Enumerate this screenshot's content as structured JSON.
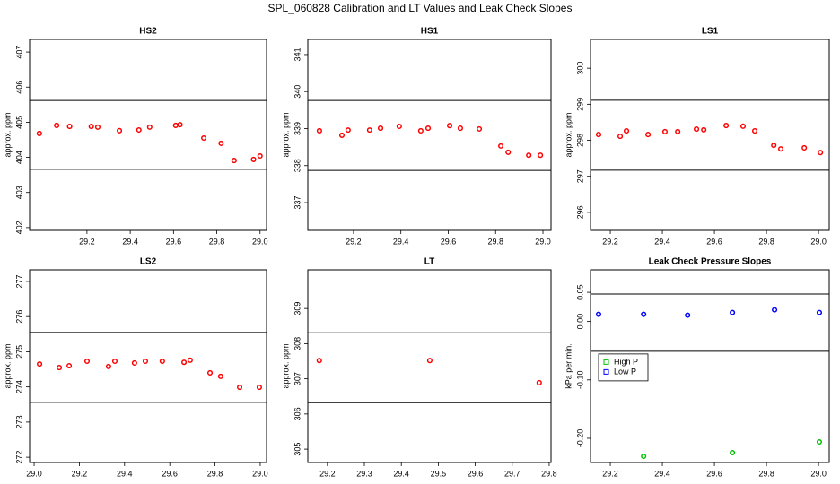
{
  "title": "SPL_060828  Calibration and LT Values and Leak Check Slopes",
  "chart_data": [
    {
      "type": "scatter",
      "title": "HS2",
      "y_label": "approx. ppm",
      "color": "#ff0000",
      "x": [
        27.98,
        28.06,
        28.12,
        28.22,
        28.25,
        28.35,
        28.44,
        28.49,
        28.61,
        28.63,
        28.74,
        28.82,
        28.88,
        28.97,
        29.0
      ],
      "values": [
        404.68,
        404.91,
        404.88,
        404.88,
        404.86,
        404.76,
        404.78,
        404.86,
        404.91,
        404.93,
        404.55,
        404.4,
        403.91,
        403.94,
        404.04
      ],
      "xlim": [
        27.935,
        29.03
      ],
      "ylim": [
        401.92,
        407.36
      ],
      "xticks": [
        {
          "value": 28.2,
          "label": "29.2"
        },
        {
          "value": 28.4,
          "label": "29.4"
        },
        {
          "value": 28.6,
          "label": "29.6"
        },
        {
          "value": 28.8,
          "label": "29.8"
        },
        {
          "value": 29.0,
          "label": "29.0"
        }
      ],
      "yticks": [
        402,
        403,
        404,
        405,
        406,
        407
      ],
      "hlines": [
        405.62,
        403.66
      ]
    },
    {
      "type": "scatter",
      "title": "HS1",
      "y_label": "approx. ppm",
      "color": "#ff0000",
      "x": [
        28.056,
        28.151,
        28.177,
        28.268,
        28.314,
        28.393,
        28.484,
        28.515,
        28.606,
        28.651,
        28.731,
        28.822,
        28.853,
        28.94,
        28.989
      ],
      "values": [
        338.94,
        338.82,
        338.96,
        338.96,
        339.01,
        339.06,
        338.94,
        339.01,
        339.08,
        339.01,
        338.99,
        338.53,
        338.36,
        338.28,
        338.28
      ],
      "xlim": [
        28.007,
        29.034
      ],
      "ylim": [
        336.25,
        341.41
      ],
      "xticks": [
        {
          "value": 28.2,
          "label": "29.2"
        },
        {
          "value": 28.4,
          "label": "29.4"
        },
        {
          "value": 28.6,
          "label": "29.6"
        },
        {
          "value": 28.8,
          "label": "29.8"
        },
        {
          "value": 29.0,
          "label": "29.0"
        }
      ],
      "yticks": [
        337,
        338,
        339,
        340,
        341
      ],
      "hlines": [
        339.76,
        337.87
      ]
    },
    {
      "type": "scatter",
      "title": "LS1",
      "y_label": "approx. ppm",
      "color": "#ff0000",
      "x": [
        28.155,
        28.238,
        28.262,
        28.345,
        28.41,
        28.459,
        28.531,
        28.559,
        28.645,
        28.71,
        28.755,
        28.828,
        28.855,
        28.945,
        29.007
      ],
      "values": [
        298.16,
        298.11,
        298.26,
        298.16,
        298.24,
        298.24,
        298.31,
        298.29,
        298.41,
        298.39,
        298.26,
        297.86,
        297.76,
        297.79,
        297.66
      ],
      "xlim": [
        28.124,
        29.041
      ],
      "ylim": [
        295.5,
        300.8
      ],
      "xticks": [
        {
          "value": 28.2,
          "label": "29.2"
        },
        {
          "value": 28.4,
          "label": "29.4"
        },
        {
          "value": 28.6,
          "label": "29.6"
        },
        {
          "value": 28.8,
          "label": "29.8"
        },
        {
          "value": 29.0,
          "label": "29.0"
        }
      ],
      "yticks": [
        296,
        297,
        298,
        299,
        300
      ],
      "hlines": [
        299.11,
        297.17
      ]
    },
    {
      "type": "scatter",
      "title": "LS2",
      "y_label": "approx. ppm",
      "color": "#ff0000",
      "x": [
        28.024,
        28.111,
        28.155,
        28.234,
        28.329,
        28.357,
        28.444,
        28.492,
        28.567,
        28.663,
        28.69,
        28.778,
        28.825,
        28.909,
        28.996
      ],
      "values": [
        274.65,
        274.55,
        274.6,
        274.73,
        274.58,
        274.73,
        274.68,
        274.73,
        274.73,
        274.7,
        274.76,
        274.4,
        274.3,
        273.99,
        273.99
      ],
      "xlim": [
        27.98,
        29.028
      ],
      "ylim": [
        271.85,
        277.33
      ],
      "xticks": [
        {
          "value": 28.0,
          "label": "29.0"
        },
        {
          "value": 28.2,
          "label": "29.2"
        },
        {
          "value": 28.4,
          "label": "29.4"
        },
        {
          "value": 28.6,
          "label": "29.6"
        },
        {
          "value": 28.8,
          "label": "29.8"
        },
        {
          "value": 29.0,
          "label": "29.0"
        }
      ],
      "yticks": [
        272,
        273,
        274,
        275,
        276,
        277
      ],
      "hlines": [
        275.55,
        273.56
      ]
    },
    {
      "type": "scatter",
      "title": "LT",
      "y_label": "approx. ppm",
      "color": "#ff0000",
      "x": [
        28.178,
        28.477,
        28.773
      ],
      "values": [
        307.52,
        307.52,
        306.89
      ],
      "xlim": [
        28.147,
        28.805
      ],
      "ylim": [
        304.62,
        310.1
      ],
      "xticks": [
        {
          "value": 28.2,
          "label": "29.2"
        },
        {
          "value": 28.3,
          "label": "29.3"
        },
        {
          "value": 28.4,
          "label": "29.4"
        },
        {
          "value": 28.5,
          "label": "29.5"
        },
        {
          "value": 28.6,
          "label": "29.6"
        },
        {
          "value": 28.7,
          "label": "29.7"
        },
        {
          "value": 28.8,
          "label": "29.8"
        }
      ],
      "yticks": [
        305,
        306,
        307,
        308,
        309
      ],
      "hlines": [
        308.31,
        306.32
      ]
    },
    {
      "type": "scatter",
      "title": "Leak Check Pressure Slopes",
      "y_label": "kPa per min.",
      "series": [
        {
          "name": "High P",
          "color": "#00c000",
          "x": [
            28.328,
            28.669,
            29.003
          ],
          "values": [
            -0.2308,
            -0.2246,
            -0.2062
          ]
        },
        {
          "name": "Low P",
          "color": "#0000ff",
          "x": [
            28.155,
            28.328,
            28.497,
            28.669,
            28.831,
            29.003
          ],
          "values": [
            0.0123,
            0.0123,
            0.0108,
            0.0154,
            0.02,
            0.0154
          ]
        }
      ],
      "legend": "left",
      "xlim": [
        28.124,
        29.041
      ],
      "ylim": [
        -0.2415,
        0.0885
      ],
      "xticks": [
        {
          "value": 28.2,
          "label": "29.2"
        },
        {
          "value": 28.4,
          "label": "29.4"
        },
        {
          "value": 28.6,
          "label": "29.6"
        },
        {
          "value": 28.8,
          "label": "29.8"
        },
        {
          "value": 29.0,
          "label": "29.0"
        }
      ],
      "yticks": [
        0.05,
        {
          "value": 0,
          "label": "0.00"
        },
        {
          "value": -0.1,
          "label": "-0.10"
        },
        {
          "value": -0.2,
          "label": "-0.20"
        }
      ],
      "hlines": [
        0.047,
        -0.051
      ]
    }
  ]
}
